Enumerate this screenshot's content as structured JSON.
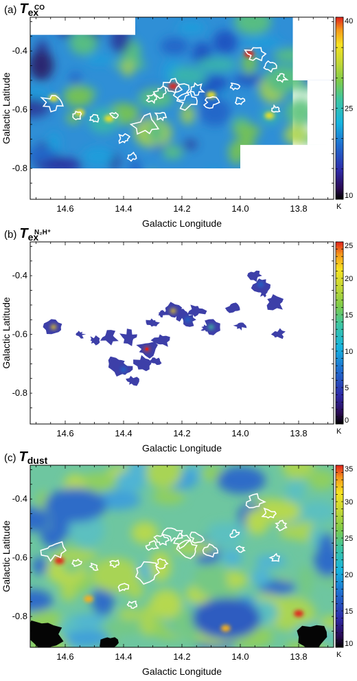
{
  "chart_data": [
    {
      "type": "heatmap",
      "panel_label": "(a)",
      "title_main": "T",
      "title_sub": "ex",
      "title_sup": "CO",
      "xlabel": "Galactic Longitude",
      "ylabel": "Galactic Latitude",
      "xlim": [
        14.72,
        13.68
      ],
      "ylim": [
        -0.905,
        -0.285
      ],
      "xticks": [
        14.6,
        14.4,
        14.2,
        14.0,
        13.8
      ],
      "xtick_labels": [
        "14.6",
        "14.4",
        "14.2",
        "14.0",
        "13.8"
      ],
      "yticks": [
        -0.4,
        -0.6,
        -0.8
      ],
      "ytick_labels": [
        "-0.4",
        "-0.6",
        "-0.8"
      ],
      "colorbar": {
        "min": 10,
        "max": 40,
        "ticks": [
          10,
          25,
          40
        ],
        "tick_labels": [
          "10",
          "25",
          "40"
        ],
        "unit": "K"
      },
      "data_extent": {
        "x": [
          14.72,
          14.36,
          14.36,
          13.82,
          13.82,
          14.0,
          14.0,
          14.72
        ],
        "y": [
          -0.345,
          -0.345,
          -0.285,
          -0.285,
          -0.72,
          -0.72,
          -0.8,
          -0.8
        ]
      },
      "contours": true,
      "hotspots": [
        {
          "l": 13.97,
          "b": -0.41,
          "value": 36
        },
        {
          "l": 14.23,
          "b": -0.52,
          "value": 38
        },
        {
          "l": 14.64,
          "b": -0.56,
          "value": 31
        },
        {
          "l": 14.55,
          "b": -0.61,
          "value": 30
        },
        {
          "l": 14.45,
          "b": -0.63,
          "value": 29
        },
        {
          "l": 14.1,
          "b": -0.55,
          "value": 29
        },
        {
          "l": 13.9,
          "b": -0.62,
          "value": 29
        }
      ]
    },
    {
      "type": "heatmap",
      "panel_label": "(b)",
      "title_main": "T",
      "title_sub": "ex",
      "title_sup": "N₂H⁺",
      "xlabel": "Galactic Longitude",
      "ylabel": "Galactic Latitude",
      "xlim": [
        14.72,
        13.68
      ],
      "ylim": [
        -0.905,
        -0.285
      ],
      "xticks": [
        14.6,
        14.4,
        14.2,
        14.0,
        13.8
      ],
      "xtick_labels": [
        "14.6",
        "14.4",
        "14.2",
        "14.0",
        "13.8"
      ],
      "yticks": [
        -0.4,
        -0.6,
        -0.8
      ],
      "ytick_labels": [
        "-0.4",
        "-0.6",
        "-0.8"
      ],
      "colorbar": {
        "min": 0,
        "max": 25,
        "ticks": [
          0,
          5,
          10,
          15,
          20,
          25
        ],
        "tick_labels": [
          "0",
          "5",
          "10",
          "15",
          "20",
          "25"
        ],
        "unit": "K"
      },
      "clumps": [
        {
          "l": 14.64,
          "b": -0.575,
          "peak": 13
        },
        {
          "l": 14.32,
          "b": -0.65,
          "peak": 21
        },
        {
          "l": 14.23,
          "b": -0.52,
          "peak": 12
        },
        {
          "l": 14.1,
          "b": -0.575,
          "peak": 11
        },
        {
          "l": 14.18,
          "b": -0.55,
          "peak": 7
        },
        {
          "l": 13.93,
          "b": -0.43,
          "peak": 6
        },
        {
          "l": 14.4,
          "b": -0.72,
          "peak": 5
        }
      ]
    },
    {
      "type": "heatmap",
      "panel_label": "(c)",
      "title_main": "T",
      "title_sub": "dust",
      "title_sup": "",
      "xlabel": "Galactic Longitude",
      "ylabel": "Galactic Latitude",
      "xlim": [
        14.72,
        13.68
      ],
      "ylim": [
        -0.905,
        -0.285
      ],
      "xticks": [
        14.6,
        14.4,
        14.2,
        14.0,
        13.8
      ],
      "xtick_labels": [
        "14.6",
        "14.4",
        "14.2",
        "14.0",
        "13.8"
      ],
      "yticks": [
        -0.4,
        -0.6,
        -0.8
      ],
      "ytick_labels": [
        "-0.4",
        "-0.6",
        "-0.8"
      ],
      "colorbar": {
        "min": 10,
        "max": 35,
        "ticks": [
          10,
          15,
          20,
          25,
          30,
          35
        ],
        "tick_labels": [
          "10",
          "15",
          "20",
          "25",
          "30",
          "35"
        ],
        "unit": "K"
      },
      "contours": true,
      "hotspots": [
        {
          "l": 14.62,
          "b": -0.61,
          "value": 34
        },
        {
          "l": 13.8,
          "b": -0.79,
          "value": 33
        },
        {
          "l": 14.05,
          "b": -0.84,
          "value": 30
        },
        {
          "l": 14.52,
          "b": -0.74,
          "value": 28
        }
      ]
    }
  ]
}
